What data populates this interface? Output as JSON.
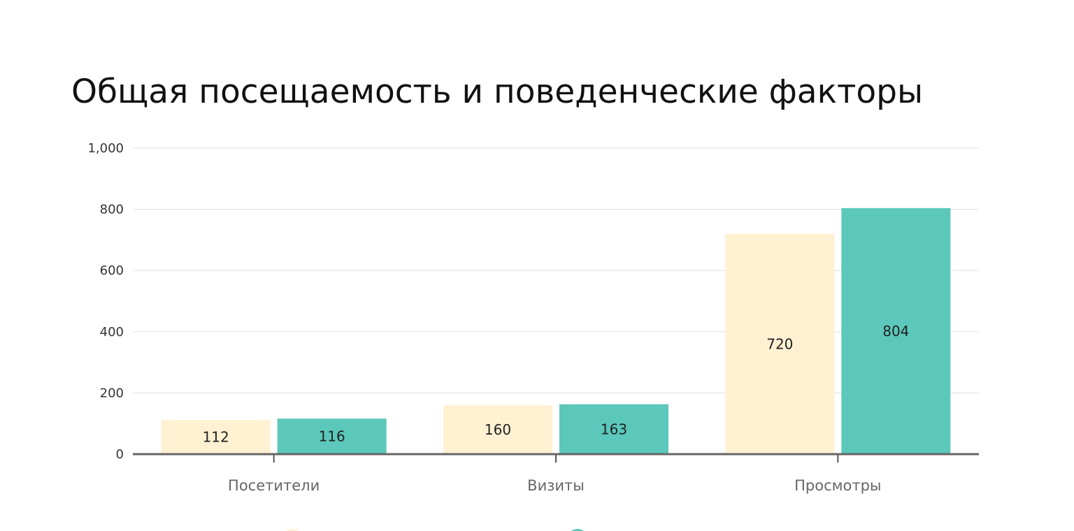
{
  "chart_data": {
    "type": "bar",
    "title": "Общая посещаемость и поведенческие факторы",
    "xlabel": "",
    "ylabel": "",
    "ylim": [
      0,
      1000
    ],
    "yticks": [
      0,
      200,
      400,
      600,
      800,
      1000
    ],
    "ytick_labels": [
      "0",
      "200",
      "400",
      "600",
      "800",
      "1,000"
    ],
    "categories": [
      "Посетители",
      "Визиты",
      "Просмотры"
    ],
    "series": [
      {
        "values": [
          112,
          160,
          720
        ],
        "color": "#fff1d2"
      },
      {
        "values": [
          116,
          163,
          804
        ],
        "color": "#5bc8bb"
      }
    ],
    "grid": true,
    "legend": "bottom"
  }
}
